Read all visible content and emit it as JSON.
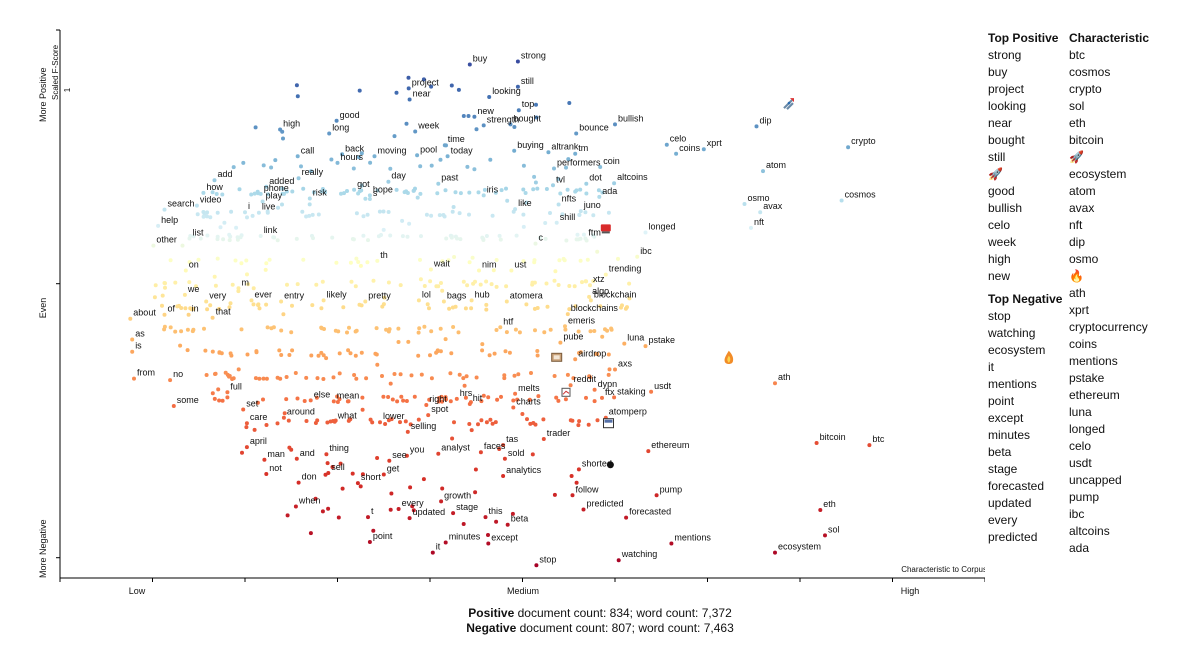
{
  "chart_data": {
    "type": "scatter",
    "axes": {
      "x_ticks": [
        "Low",
        "Medium",
        "High"
      ],
      "y_ticks": [
        "More Negative",
        "Even",
        "More Positive"
      ],
      "y_title": "Scaled F-Score",
      "y_top_marker": "1",
      "corner_label": "Characteristic to Corpus",
      "xlim": [
        0,
        1
      ],
      "ylim": [
        0,
        1
      ]
    },
    "labeled_terms": [
      {
        "t": "buy",
        "x": 0.443,
        "y": 0.932
      },
      {
        "t": "strong",
        "x": 0.495,
        "y": 0.938
      },
      {
        "t": "still",
        "x": 0.495,
        "y": 0.888
      },
      {
        "t": "project",
        "x": 0.377,
        "y": 0.885
      },
      {
        "t": "near",
        "x": 0.378,
        "y": 0.863
      },
      {
        "t": "looking",
        "x": 0.464,
        "y": 0.868
      },
      {
        "t": "top",
        "x": 0.496,
        "y": 0.842
      },
      {
        "t": "new",
        "x": 0.448,
        "y": 0.829
      },
      {
        "t": "strength",
        "x": 0.458,
        "y": 0.812
      },
      {
        "t": "bought",
        "x": 0.487,
        "y": 0.814
      },
      {
        "t": "good",
        "x": 0.299,
        "y": 0.821
      },
      {
        "t": "high",
        "x": 0.238,
        "y": 0.804
      },
      {
        "t": "long",
        "x": 0.291,
        "y": 0.796
      },
      {
        "t": "week",
        "x": 0.384,
        "y": 0.8
      },
      {
        "t": "time",
        "x": 0.416,
        "y": 0.773
      },
      {
        "t": "bullish",
        "x": 0.6,
        "y": 0.814
      },
      {
        "t": "bounce",
        "x": 0.558,
        "y": 0.796
      },
      {
        "t": "celo",
        "x": 0.656,
        "y": 0.774
      },
      {
        "t": "xprt",
        "x": 0.696,
        "y": 0.765
      },
      {
        "t": "coins",
        "x": 0.666,
        "y": 0.756
      },
      {
        "t": "dip",
        "x": 0.753,
        "y": 0.81
      },
      {
        "t": "crypto",
        "x": 0.852,
        "y": 0.769
      },
      {
        "t": "buying",
        "x": 0.491,
        "y": 0.762
      },
      {
        "t": "altrank",
        "x": 0.528,
        "y": 0.759
      },
      {
        "t": "tm",
        "x": 0.557,
        "y": 0.756
      },
      {
        "t": "call",
        "x": 0.257,
        "y": 0.751
      },
      {
        "t": "back",
        "x": 0.305,
        "y": 0.755
      },
      {
        "t": "hours",
        "x": 0.3,
        "y": 0.738
      },
      {
        "t": "moving",
        "x": 0.34,
        "y": 0.751
      },
      {
        "t": "pool",
        "x": 0.386,
        "y": 0.753
      },
      {
        "t": "today",
        "x": 0.419,
        "y": 0.751
      },
      {
        "t": "performers",
        "x": 0.534,
        "y": 0.727
      },
      {
        "t": "coin",
        "x": 0.584,
        "y": 0.73
      },
      {
        "t": "atom",
        "x": 0.76,
        "y": 0.722
      },
      {
        "t": "really",
        "x": 0.258,
        "y": 0.708
      },
      {
        "t": "day",
        "x": 0.355,
        "y": 0.701
      },
      {
        "t": "past",
        "x": 0.409,
        "y": 0.697
      },
      {
        "t": "add",
        "x": 0.167,
        "y": 0.704
      },
      {
        "t": "added",
        "x": 0.223,
        "y": 0.691
      },
      {
        "t": "got",
        "x": 0.318,
        "y": 0.685
      },
      {
        "t": "s",
        "x": 0.335,
        "y": 0.667
      },
      {
        "t": "hope",
        "x": 0.335,
        "y": 0.674
      },
      {
        "t": "tvl",
        "x": 0.533,
        "y": 0.694
      },
      {
        "t": "dot",
        "x": 0.569,
        "y": 0.697
      },
      {
        "t": "altcoins",
        "x": 0.599,
        "y": 0.698
      },
      {
        "t": "how",
        "x": 0.155,
        "y": 0.679
      },
      {
        "t": "phone",
        "x": 0.217,
        "y": 0.677
      },
      {
        "t": "play",
        "x": 0.219,
        "y": 0.662
      },
      {
        "t": "risk",
        "x": 0.27,
        "y": 0.668
      },
      {
        "t": "iris",
        "x": 0.458,
        "y": 0.674
      },
      {
        "t": "ada",
        "x": 0.583,
        "y": 0.671
      },
      {
        "t": "cosmos",
        "x": 0.845,
        "y": 0.664
      },
      {
        "t": "video",
        "x": 0.148,
        "y": 0.654
      },
      {
        "t": "live",
        "x": 0.215,
        "y": 0.64
      },
      {
        "t": "i",
        "x": 0.2,
        "y": 0.641
      },
      {
        "t": "nfts",
        "x": 0.539,
        "y": 0.656
      },
      {
        "t": "like",
        "x": 0.492,
        "y": 0.647
      },
      {
        "t": "juno",
        "x": 0.563,
        "y": 0.643
      },
      {
        "t": "osmo",
        "x": 0.74,
        "y": 0.657
      },
      {
        "t": "avax",
        "x": 0.757,
        "y": 0.641
      },
      {
        "t": "search",
        "x": 0.113,
        "y": 0.646
      },
      {
        "t": "shill",
        "x": 0.537,
        "y": 0.62
      },
      {
        "t": "help",
        "x": 0.106,
        "y": 0.614
      },
      {
        "t": "link",
        "x": 0.217,
        "y": 0.594
      },
      {
        "t": "list",
        "x": 0.14,
        "y": 0.589
      },
      {
        "t": "nft",
        "x": 0.747,
        "y": 0.61
      },
      {
        "t": "longed",
        "x": 0.633,
        "y": 0.601
      },
      {
        "t": "ftm",
        "x": 0.568,
        "y": 0.589
      },
      {
        "t": "other",
        "x": 0.101,
        "y": 0.575
      },
      {
        "t": "c",
        "x": 0.514,
        "y": 0.579
      },
      {
        "t": "th",
        "x": 0.343,
        "y": 0.545
      },
      {
        "t": "ibc",
        "x": 0.624,
        "y": 0.553
      },
      {
        "t": "on",
        "x": 0.136,
        "y": 0.526
      },
      {
        "t": "wait",
        "x": 0.401,
        "y": 0.528
      },
      {
        "t": "nim",
        "x": 0.453,
        "y": 0.526
      },
      {
        "t": "ust",
        "x": 0.488,
        "y": 0.526
      },
      {
        "t": "trending",
        "x": 0.59,
        "y": 0.518
      },
      {
        "t": "xtz",
        "x": 0.573,
        "y": 0.497
      },
      {
        "t": "m",
        "x": 0.193,
        "y": 0.491
      },
      {
        "t": "we",
        "x": 0.135,
        "y": 0.478
      },
      {
        "t": "very",
        "x": 0.158,
        "y": 0.465
      },
      {
        "t": "ever",
        "x": 0.207,
        "y": 0.467
      },
      {
        "t": "entry",
        "x": 0.239,
        "y": 0.465
      },
      {
        "t": "likely",
        "x": 0.285,
        "y": 0.467
      },
      {
        "t": "pretty",
        "x": 0.33,
        "y": 0.465
      },
      {
        "t": "lol",
        "x": 0.388,
        "y": 0.467
      },
      {
        "t": "bags",
        "x": 0.415,
        "y": 0.465
      },
      {
        "t": "hub",
        "x": 0.445,
        "y": 0.467
      },
      {
        "t": "atomera",
        "x": 0.483,
        "y": 0.465
      },
      {
        "t": "algo",
        "x": 0.572,
        "y": 0.474
      },
      {
        "t": "blockchain",
        "x": 0.574,
        "y": 0.467
      },
      {
        "t": "blockchains",
        "x": 0.549,
        "y": 0.44
      },
      {
        "t": "of",
        "x": 0.113,
        "y": 0.439
      },
      {
        "t": "in",
        "x": 0.139,
        "y": 0.439
      },
      {
        "t": "that",
        "x": 0.165,
        "y": 0.433
      },
      {
        "t": "about",
        "x": 0.076,
        "y": 0.431
      },
      {
        "t": "emeris",
        "x": 0.546,
        "y": 0.416
      },
      {
        "t": "htf",
        "x": 0.476,
        "y": 0.414
      },
      {
        "t": "as",
        "x": 0.078,
        "y": 0.39
      },
      {
        "t": "is",
        "x": 0.078,
        "y": 0.366
      },
      {
        "t": "pube",
        "x": 0.541,
        "y": 0.384
      },
      {
        "t": "luna",
        "x": 0.61,
        "y": 0.382
      },
      {
        "t": "pstake",
        "x": 0.633,
        "y": 0.377
      },
      {
        "t": "airdrop",
        "x": 0.557,
        "y": 0.351
      },
      {
        "t": "from",
        "x": 0.08,
        "y": 0.313
      },
      {
        "t": "no",
        "x": 0.119,
        "y": 0.31
      },
      {
        "t": "axs",
        "x": 0.6,
        "y": 0.331
      },
      {
        "t": "ath",
        "x": 0.773,
        "y": 0.304
      },
      {
        "t": "full",
        "x": 0.181,
        "y": 0.286
      },
      {
        "t": "some",
        "x": 0.123,
        "y": 0.259
      },
      {
        "t": "set",
        "x": 0.198,
        "y": 0.252
      },
      {
        "t": "else",
        "x": 0.271,
        "y": 0.27
      },
      {
        "t": "mean",
        "x": 0.296,
        "y": 0.268
      },
      {
        "t": "around",
        "x": 0.242,
        "y": 0.236
      },
      {
        "t": "what",
        "x": 0.297,
        "y": 0.228
      },
      {
        "t": "lower",
        "x": 0.346,
        "y": 0.227
      },
      {
        "t": "care",
        "x": 0.202,
        "y": 0.225
      },
      {
        "t": "right",
        "x": 0.396,
        "y": 0.261
      },
      {
        "t": "spot",
        "x": 0.398,
        "y": 0.241
      },
      {
        "t": "hrs",
        "x": 0.429,
        "y": 0.273
      },
      {
        "t": "hit",
        "x": 0.443,
        "y": 0.263
      },
      {
        "t": "melts",
        "x": 0.492,
        "y": 0.283
      },
      {
        "t": "charts",
        "x": 0.49,
        "y": 0.256
      },
      {
        "t": "reddit",
        "x": 0.552,
        "y": 0.3
      },
      {
        "t": "dypn",
        "x": 0.578,
        "y": 0.291
      },
      {
        "t": "ftx",
        "x": 0.586,
        "y": 0.275
      },
      {
        "t": "staking",
        "x": 0.599,
        "y": 0.276
      },
      {
        "t": "usdt",
        "x": 0.639,
        "y": 0.287
      },
      {
        "t": "atomperp",
        "x": 0.59,
        "y": 0.236
      },
      {
        "t": "selling",
        "x": 0.376,
        "y": 0.208
      },
      {
        "t": "april",
        "x": 0.202,
        "y": 0.178
      },
      {
        "t": "man",
        "x": 0.221,
        "y": 0.153
      },
      {
        "t": "and",
        "x": 0.256,
        "y": 0.155
      },
      {
        "t": "thing",
        "x": 0.288,
        "y": 0.164
      },
      {
        "t": "you",
        "x": 0.375,
        "y": 0.161
      },
      {
        "t": "see",
        "x": 0.356,
        "y": 0.151
      },
      {
        "t": "analyst",
        "x": 0.409,
        "y": 0.165
      },
      {
        "t": "faces",
        "x": 0.455,
        "y": 0.168
      },
      {
        "t": "trader",
        "x": 0.523,
        "y": 0.194
      },
      {
        "t": "tas",
        "x": 0.479,
        "y": 0.182
      },
      {
        "t": "sold",
        "x": 0.481,
        "y": 0.155
      },
      {
        "t": "ethereum",
        "x": 0.636,
        "y": 0.17
      },
      {
        "t": "bitcoin",
        "x": 0.818,
        "y": 0.186
      },
      {
        "t": "btc",
        "x": 0.875,
        "y": 0.182
      },
      {
        "t": "not",
        "x": 0.223,
        "y": 0.125
      },
      {
        "t": "sell",
        "x": 0.29,
        "y": 0.127
      },
      {
        "t": "don",
        "x": 0.258,
        "y": 0.108
      },
      {
        "t": "get",
        "x": 0.35,
        "y": 0.124
      },
      {
        "t": "short",
        "x": 0.322,
        "y": 0.107
      },
      {
        "t": "shorted",
        "x": 0.561,
        "y": 0.134
      },
      {
        "t": "analytics",
        "x": 0.479,
        "y": 0.121
      },
      {
        "t": "follow",
        "x": 0.554,
        "y": 0.083
      },
      {
        "t": "pump",
        "x": 0.645,
        "y": 0.083
      },
      {
        "t": "when",
        "x": 0.255,
        "y": 0.061
      },
      {
        "t": "growth",
        "x": 0.412,
        "y": 0.071
      },
      {
        "t": "every",
        "x": 0.366,
        "y": 0.056
      },
      {
        "t": "stage",
        "x": 0.425,
        "y": 0.048
      },
      {
        "t": "predicted",
        "x": 0.566,
        "y": 0.055
      },
      {
        "t": "eth",
        "x": 0.822,
        "y": 0.054
      },
      {
        "t": "t",
        "x": 0.333,
        "y": 0.04
      },
      {
        "t": "updated",
        "x": 0.378,
        "y": 0.038
      },
      {
        "t": "this",
        "x": 0.46,
        "y": 0.04
      },
      {
        "t": "forecasted",
        "x": 0.612,
        "y": 0.039
      },
      {
        "t": "beta",
        "x": 0.484,
        "y": 0.025
      },
      {
        "t": "sol",
        "x": 0.827,
        "y": 0.004
      },
      {
        "t": "mentions",
        "x": 0.661,
        "y": -0.012
      },
      {
        "t": "point",
        "x": 0.335,
        "y": -0.009
      },
      {
        "t": "minutes",
        "x": 0.417,
        "y": -0.01
      },
      {
        "t": "except",
        "x": 0.463,
        "y": -0.012
      },
      {
        "t": "it",
        "x": 0.403,
        "y": -0.03
      },
      {
        "t": "ecosystem",
        "x": 0.773,
        "y": -0.03
      },
      {
        "t": "watching",
        "x": 0.604,
        "y": -0.045
      },
      {
        "t": "stop",
        "x": 0.515,
        "y": -0.055
      }
    ],
    "emoji_terms": [
      {
        "icon": "rocket-icon",
        "x": 0.787,
        "y": 0.854
      },
      {
        "icon": "fire-icon",
        "x": 0.723,
        "y": 0.354
      },
      {
        "icon": "red-triangle-icon",
        "x": 0.59,
        "y": 0.609
      },
      {
        "icon": "chart-arrow-icon",
        "x": 0.547,
        "y": 0.286
      },
      {
        "icon": "flag-icon",
        "x": 0.593,
        "y": 0.224
      },
      {
        "icon": "box-icon",
        "x": 0.537,
        "y": 0.355
      },
      {
        "icon": "black-dot-icon",
        "x": 0.595,
        "y": 0.143
      }
    ],
    "unlabeled_point_count": 650
  },
  "side_lists": {
    "top_positive_title": "Top Positive",
    "top_positive": [
      "strong",
      "buy",
      "project",
      "looking",
      "near",
      "bought",
      "still",
      "🚀",
      "good",
      "bullish",
      "celo",
      "week",
      "high",
      "new"
    ],
    "top_negative_title": "Top Negative",
    "top_negative": [
      "stop",
      "watching",
      "ecosystem",
      "it",
      "mentions",
      "point",
      "except",
      "minutes",
      "beta",
      "stage",
      "forecasted",
      "updated",
      "every",
      "predicted"
    ],
    "characteristic_title": "Characteristic",
    "characteristic": [
      "btc",
      "cosmos",
      "crypto",
      "sol",
      "eth",
      "bitcoin",
      "🚀",
      "ecosystem",
      "atom",
      "avax",
      "nft",
      "dip",
      "osmo",
      "🔥",
      "ath",
      "xprt",
      "cryptocurrency",
      "coins",
      "mentions",
      "pstake",
      "ethereum",
      "luna",
      "longed",
      "celo",
      "usdt",
      "uncapped",
      "pump",
      "ibc",
      "altcoins",
      "ada"
    ]
  },
  "counts": {
    "positive_label": "Positive",
    "positive_text": " document count: 834; word count: 7,372",
    "negative_label": "Negative",
    "negative_text": " document count: 807; word count: 7,463"
  }
}
